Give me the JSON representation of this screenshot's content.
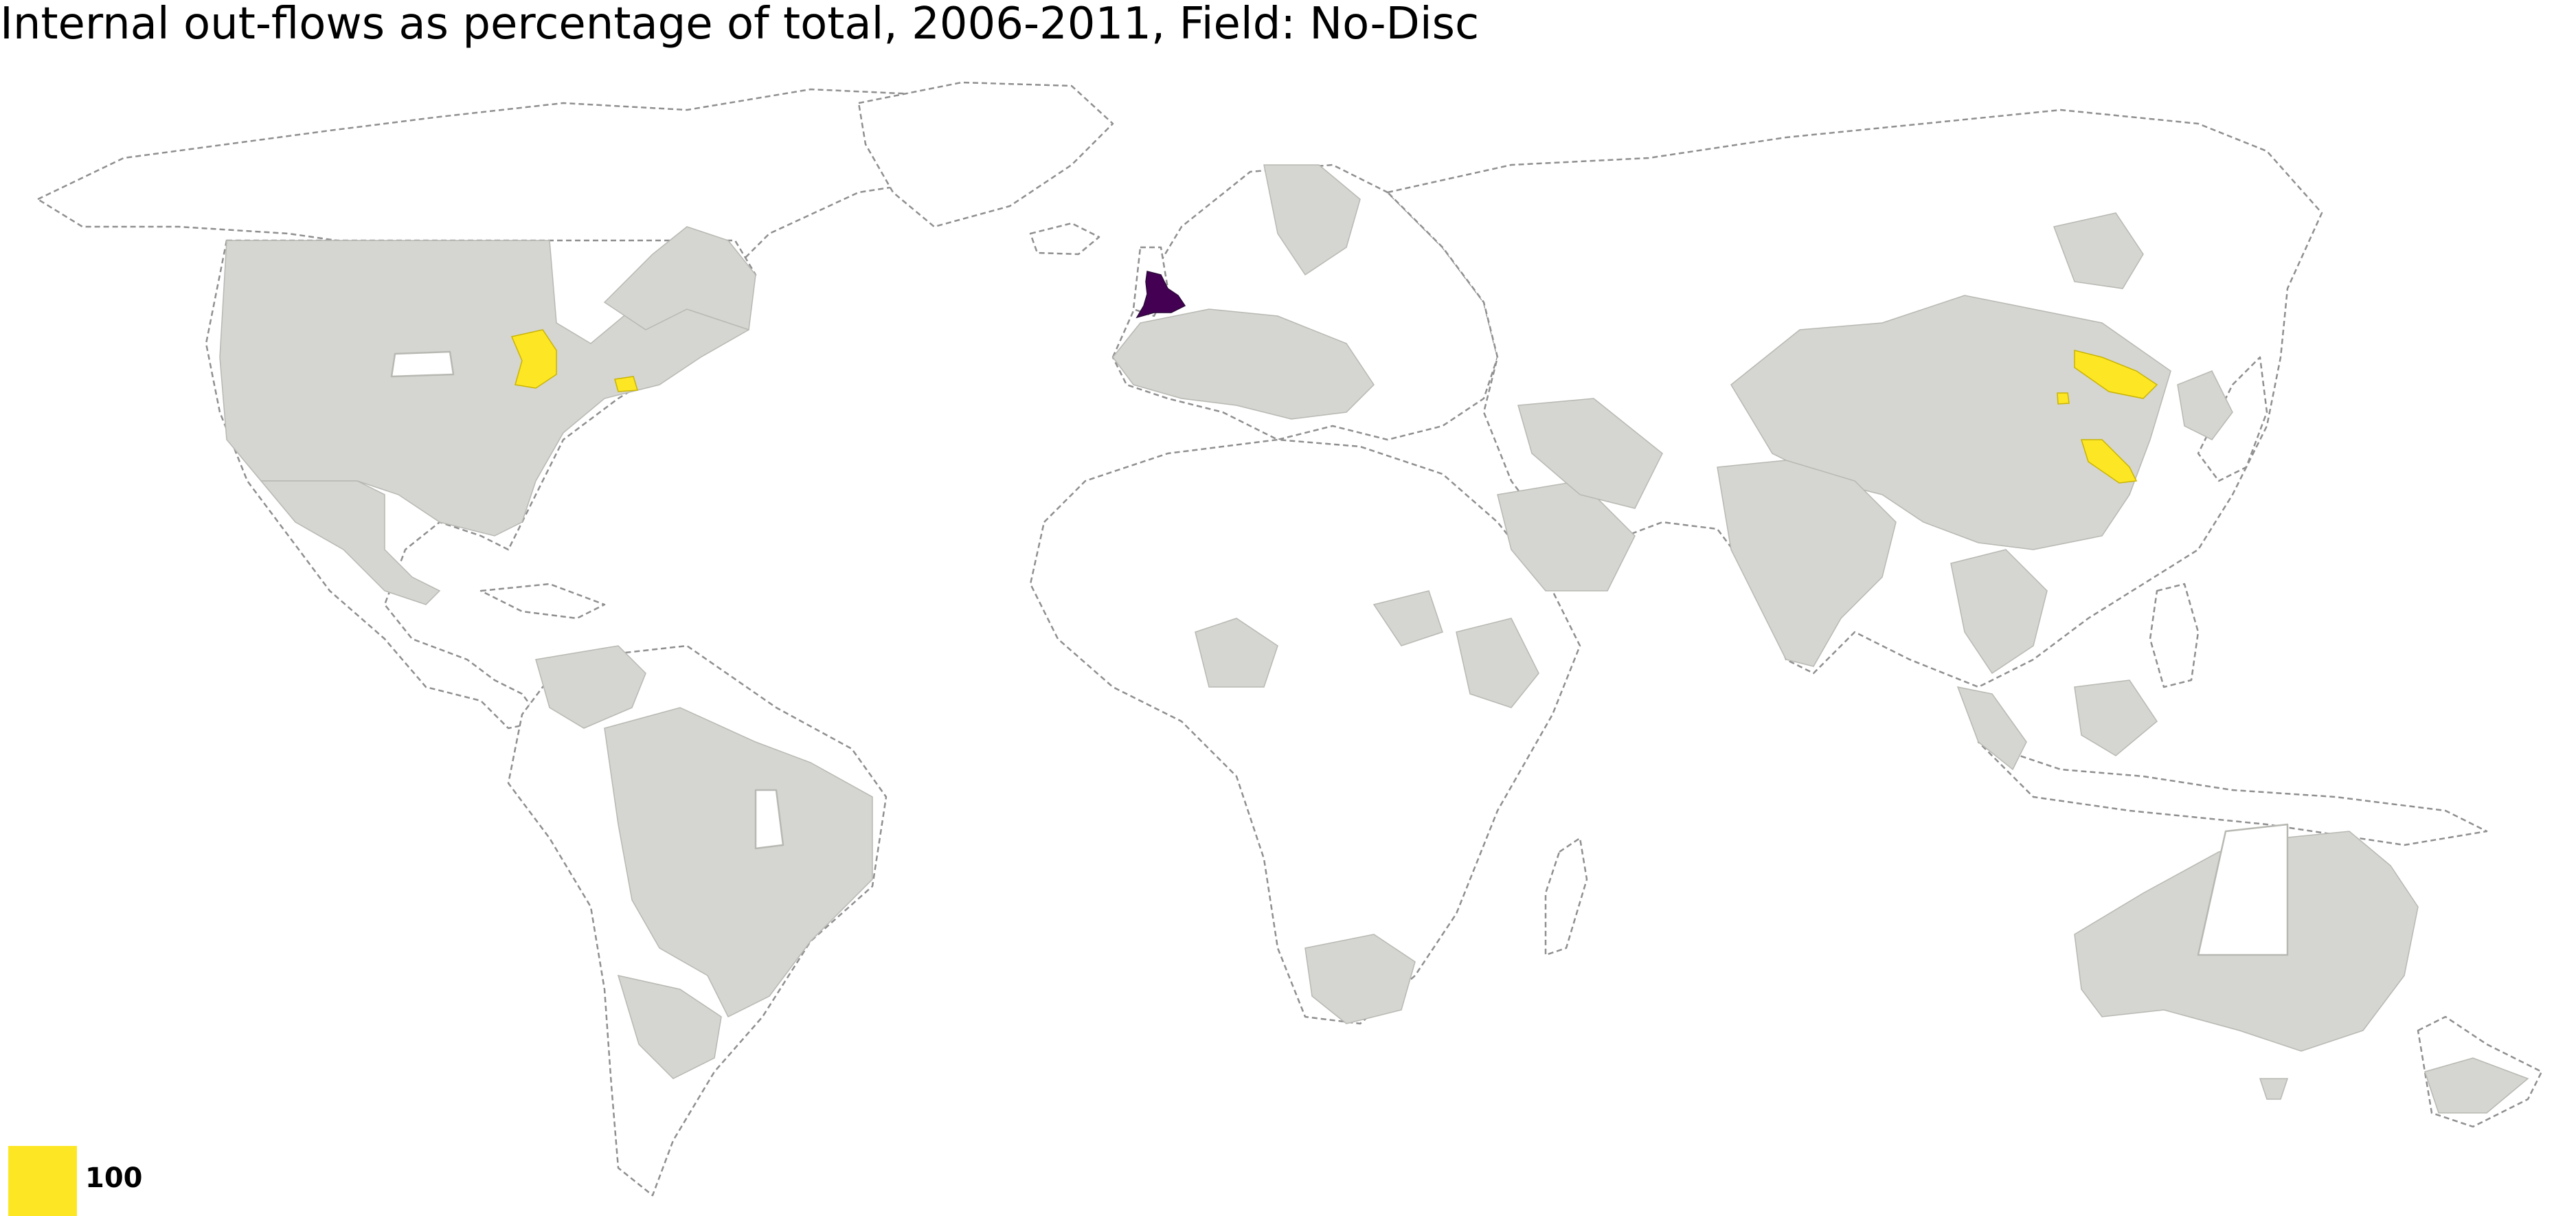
{
  "title": "Internal out-flows as percentage of total, 2006-2011, Field: No-Disc",
  "colors": {
    "no_data": "#ffffff",
    "data_present": "#d5d5d1",
    "value_100": "#fde725",
    "home_country": "#440154"
  },
  "legend": {
    "items": [
      {
        "label": "100",
        "color": "#fde725"
      }
    ]
  },
  "highlighted_regions": [
    {
      "region": "United Kingdom",
      "color_role": "home_country"
    },
    {
      "region": "Great Lakes area (USA)",
      "value": 100
    },
    {
      "region": "US north-east coast",
      "value": 100
    },
    {
      "region": "Northeast China",
      "value": 100
    },
    {
      "region": "Beijing area",
      "value": 100
    },
    {
      "region": "Jiangsu area",
      "value": 100
    }
  ]
}
